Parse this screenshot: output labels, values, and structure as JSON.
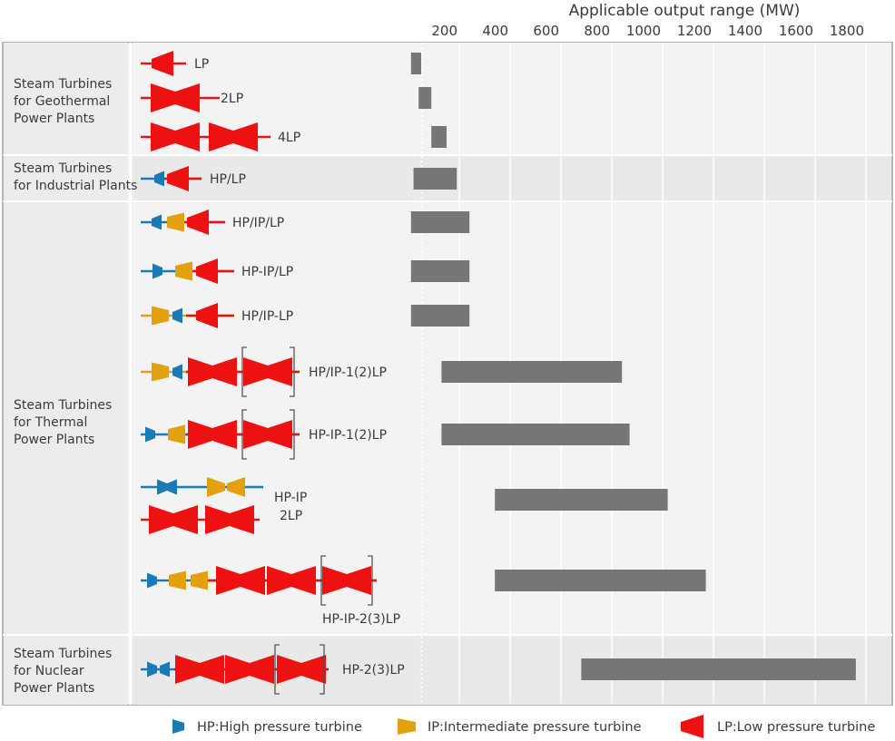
{
  "chart_data": {
    "type": "bar",
    "orientation": "horizontal",
    "title": "Applicable output range (MW)",
    "xlabel": "Applicable output range (MW)",
    "ylabel": "",
    "xlim": [
      0,
      1850
    ],
    "xticks": [
      200,
      400,
      600,
      800,
      1000,
      1200,
      1400,
      1600,
      1800
    ],
    "grid": true,
    "legend_placement": "bottom",
    "groups": [
      {
        "label": "Steam Turbines\nfor Geothermal\nPower Plants",
        "shaded": false
      },
      {
        "label": "Steam Turbines\nfor Industrial Plants",
        "shaded": true
      },
      {
        "label": "Steam Turbines\nfor Thermal\nPower Plants",
        "shaded": false
      },
      {
        "label": "Steam Turbines\nfor Nuclear\nPower Plants",
        "shaded": true
      }
    ],
    "rows": [
      {
        "group": 0,
        "config": "LP",
        "min": 10,
        "max": 50,
        "units": [
          "LP"
        ]
      },
      {
        "group": 0,
        "config": "2LP",
        "min": 40,
        "max": 90,
        "units": [
          "LP",
          "LP"
        ]
      },
      {
        "group": 0,
        "config": "4LP",
        "min": 90,
        "max": 150,
        "units": [
          "LP",
          "LP",
          "J",
          "LP",
          "LP"
        ]
      },
      {
        "group": 1,
        "config": "HP/LP",
        "min": 20,
        "max": 190,
        "units": [
          "HP",
          "LP"
        ]
      },
      {
        "group": 2,
        "config": "HP/IP/LP",
        "min": 10,
        "max": 240,
        "units": [
          "HP",
          "IP",
          "LP"
        ]
      },
      {
        "group": 2,
        "config": "HP-IP/LP",
        "min": 10,
        "max": 240,
        "units": [
          "HP",
          "IP",
          "LP"
        ]
      },
      {
        "group": 2,
        "config": "HP/IP-LP",
        "min": 10,
        "max": 240,
        "units": [
          "IP",
          "HP",
          "LP"
        ]
      },
      {
        "group": 2,
        "config": "HP/IP-1(2)LP",
        "min": 130,
        "max": 840,
        "units": [
          "IP",
          "HP",
          "LP",
          "LPB"
        ]
      },
      {
        "group": 2,
        "config": "HP-IP-1(2)LP",
        "min": 130,
        "max": 870,
        "units": [
          "HP",
          "IP",
          "LP",
          "LPB"
        ]
      },
      {
        "group": 2,
        "config": "HP-IP\n2LP",
        "min": 340,
        "max": 1020,
        "units": [
          "HPIPLINE",
          "LPLINE"
        ]
      },
      {
        "group": 2,
        "config": "HP-IP-2(3)LP",
        "min": 340,
        "max": 1170,
        "units": [
          "HP",
          "IP",
          "IP",
          "LP",
          "LP",
          "LP",
          "LPB"
        ]
      },
      {
        "group": 3,
        "config": "HP-2(3)LP",
        "min": 680,
        "max": 1760,
        "units": [
          "HP",
          "LP",
          "LP",
          "LPB"
        ]
      }
    ],
    "bar_color": "#767676",
    "colors": {
      "hp": "#1a7bb4",
      "ip": "#e3a10f",
      "lp": "#ee1111"
    },
    "legend": [
      {
        "type": "HP",
        "label": "HP:High pressure turbine",
        "color": "#1a7bb4"
      },
      {
        "type": "IP",
        "label": "IP:Intermediate pressure turbine",
        "color": "#e3a10f"
      },
      {
        "type": "LP",
        "label": "LP:Low pressure turbine",
        "color": "#ee1111"
      }
    ]
  }
}
